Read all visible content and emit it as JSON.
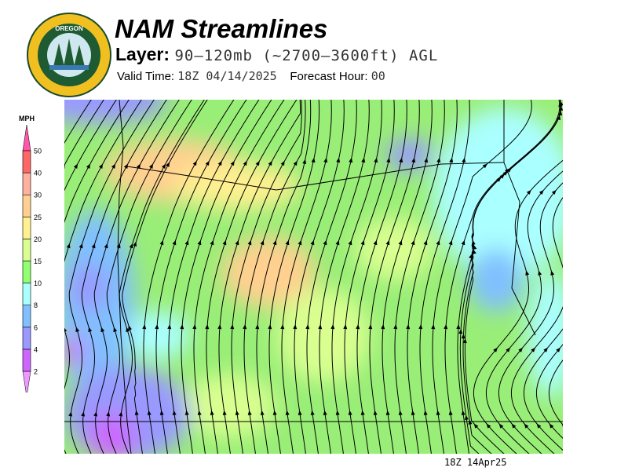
{
  "header": {
    "title": "NAM Streamlines",
    "layer_label": "Layer:",
    "layer_value": "90–120mb (~2700–3600ft) AGL",
    "valid_label": "Valid Time:",
    "valid_value": "18Z 04/14/2025",
    "forecast_label": "Forecast Hour:",
    "forecast_value": "00"
  },
  "logo": {
    "text_top": "OREGON",
    "text_bottom": "DEPARTMENT OF FORESTRY"
  },
  "legend": {
    "unit": "MPH",
    "ticks": [
      "2",
      "4",
      "6",
      "8",
      "10",
      "15",
      "20",
      "25",
      "30",
      "40",
      "50"
    ],
    "colors": [
      "#cc66ff",
      "#9999ff",
      "#80c0ff",
      "#aaffff",
      "#90ff70",
      "#d8ff90",
      "#fff090",
      "#ffd090",
      "#ffb0a0",
      "#ff6666"
    ],
    "below_color": "#ee99ff",
    "above_color": "#ff55aa"
  },
  "map": {
    "base_color": "#99ee77",
    "stream_color": "#000000"
  },
  "footer": {
    "timestamp": "18Z 14Apr25"
  }
}
